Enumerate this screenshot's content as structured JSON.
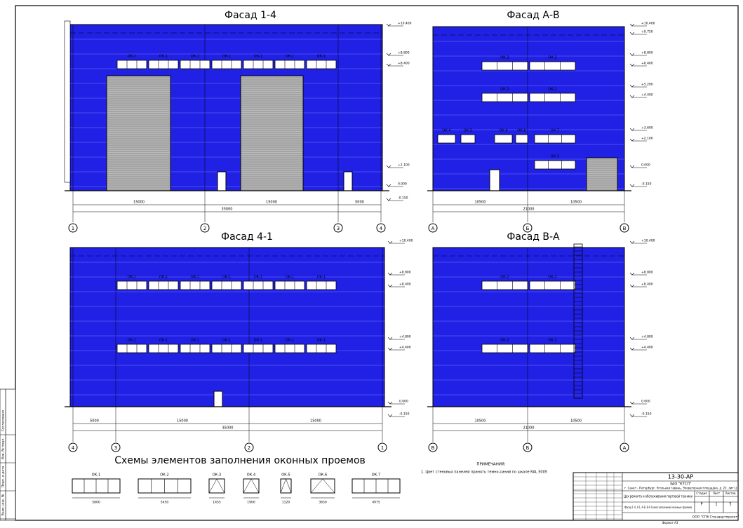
{
  "facades": [
    {
      "title": "Фасад 1-4",
      "axes": [
        "1",
        "2",
        "3",
        "4"
      ],
      "dimensions": [
        "15000",
        "15000",
        "5000"
      ],
      "total": "35000",
      "levels": [
        "+10.400",
        "+8.800",
        "+8.400",
        "+2.100",
        "0.000",
        "-0.150"
      ],
      "windows": [
        "ОК-1",
        "ОК-1",
        "ОК-1",
        "ОК-1",
        "ОК-1",
        "ОК-1",
        "ОК-1"
      ]
    },
    {
      "title": "Фасад А-В",
      "axes": [
        "А",
        "Б",
        "В"
      ],
      "dimensions": [
        "10500",
        "10500"
      ],
      "total": "21000",
      "levels": [
        "+10.400",
        "+9.750",
        "+8.800",
        "+8.400",
        "+5.200",
        "+4.400",
        "+3.600",
        "+2.100",
        "0.000",
        "-0.150"
      ],
      "windows": [
        "ОК-2",
        "ОК-2",
        "ОК-2",
        "ОК-2",
        "ОК-4",
        "ОК-5",
        "ОК-6",
        "ОК-6",
        "ОК-7",
        "ОК-3"
      ]
    },
    {
      "title": "Фасад 4-1",
      "axes": [
        "4",
        "3",
        "2",
        "1"
      ],
      "dimensions": [
        "5000",
        "15000",
        "15000"
      ],
      "total": "35000",
      "levels": [
        "+10.400",
        "+8.800",
        "+8.400",
        "+4.800",
        "+4.400",
        "0.000",
        "-0.150"
      ],
      "windows": [
        "ОК-1",
        "ОК-1",
        "ОК-1",
        "ОК-1",
        "ОК-1",
        "ОК-1",
        "ОК-1",
        "ОК-1",
        "ОК-1",
        "ОК-1",
        "ОК-1",
        "ОК-1",
        "ОК-1",
        "ОК-1"
      ]
    },
    {
      "title": "Фасад В-А",
      "axes": [
        "В",
        "Б",
        "А"
      ],
      "dimensions": [
        "10500",
        "10500"
      ],
      "total": "21000",
      "levels": [
        "+10.400",
        "+8.800",
        "+8.400",
        "+4.800",
        "+4.400",
        "0.000",
        "-0.150"
      ],
      "windows": [
        "ОК-2",
        "ОК-2",
        "ОК-2",
        "ОК-2"
      ]
    }
  ],
  "schemes": {
    "title": "Схемы элементов заполнения оконных проемов",
    "items": [
      {
        "label": "ОК-1",
        "width": "5800"
      },
      {
        "label": "ОК-2",
        "width": "5450"
      },
      {
        "label": "ОК-3",
        "width": "1455"
      },
      {
        "label": "ОК-4",
        "width": "1900"
      },
      {
        "label": "ОК-5",
        "width": "1120"
      },
      {
        "label": "ОК-6",
        "width": "3650"
      },
      {
        "label": "ОК-7",
        "width": "4975"
      }
    ]
  },
  "notes": {
    "heading": "ПРИМЕЧАНИЯ:",
    "text": "1. Цвет стеновых панелей принять темно-синий по шкале RAL 5005"
  },
  "stamp": {
    "code": "13-30-АР",
    "client": "ЗАО \"КТСП\"",
    "address": "г. Санкт - Петербург, Угольная гавань, Элеваторная площадка, д. 22, лит Ц",
    "object": "Цех ремонта и обслуживания портовой техники",
    "stage_h": "Стадия",
    "sheet_h": "Лист",
    "sheets_h": "Листов",
    "stage": "Р",
    "sheet": "1",
    "sheets": "5",
    "sheet_title": "Фасад 1-4, 4-1, А-В, В-А Схема заполнения оконных проемов",
    "firm": "ООО \"СПб Стандартпроект\"",
    "format": "Формат А3"
  },
  "side": [
    "Согласовано",
    "Инв. № подл.",
    "Подп. и дата",
    "Взам. инв. №"
  ]
}
